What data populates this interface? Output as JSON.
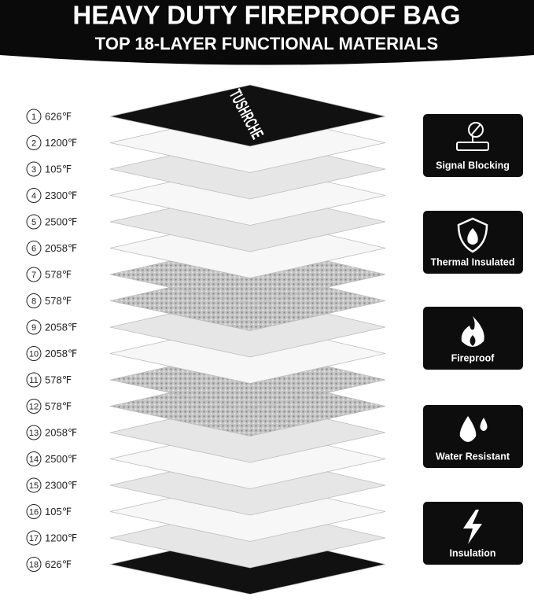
{
  "header": {
    "title": "HEAVY DUTY FIREPROOF BAG",
    "subtitle": "TOP 18-LAYER FUNCTIONAL MATERIALS"
  },
  "brand": "TUSHRCHE",
  "layers": [
    {
      "number": "1",
      "temp": "626℉"
    },
    {
      "number": "2",
      "temp": "1200℉"
    },
    {
      "number": "3",
      "temp": "105℉"
    },
    {
      "number": "4",
      "temp": "2300℉"
    },
    {
      "number": "5",
      "temp": "2500℉"
    },
    {
      "number": "6",
      "temp": "2058℉"
    },
    {
      "number": "7",
      "temp": "578℉"
    },
    {
      "number": "8",
      "temp": "578℉"
    },
    {
      "number": "9",
      "temp": "2058℉"
    },
    {
      "number": "10",
      "temp": "2058℉"
    },
    {
      "number": "11",
      "temp": "578℉"
    },
    {
      "number": "12",
      "temp": "578℉"
    },
    {
      "number": "13",
      "temp": "2058℉"
    },
    {
      "number": "14",
      "temp": "2500℉"
    },
    {
      "number": "15",
      "temp": "2300℉"
    },
    {
      "number": "16",
      "temp": "105℉"
    },
    {
      "number": "17",
      "temp": "1200℉"
    },
    {
      "number": "18",
      "temp": "626℉"
    }
  ],
  "features": [
    "Signal Blocking",
    "Thermal Insulated",
    "Fireproof",
    "Water Resistant",
    "Insulation"
  ]
}
